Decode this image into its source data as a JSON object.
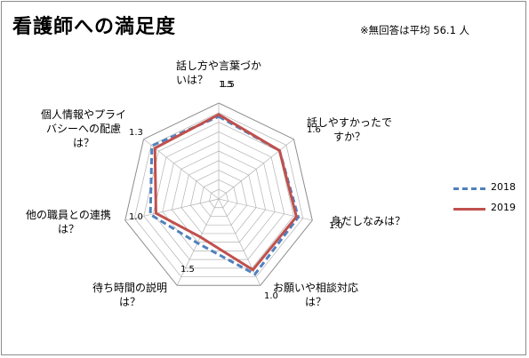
{
  "chart_data": {
    "type": "radar",
    "title": "看護師への満足度",
    "note": "※無回答は平均 56.1 人",
    "categories": [
      "話し方や言葉づか\nいは？",
      "話しやすかったで\nすか？",
      "身だしなみは？",
      "お願いや相談対応\nは？",
      "待ち時間の説明\nは？",
      "他の職員との連携\nは？",
      "個人情報やプライ\nバシーへの配慮\nは？"
    ],
    "tick_labels": [
      "1.5",
      "1.6",
      "1.0",
      "1.0",
      "1.5",
      "1.0",
      "1.3",
      "1.5"
    ],
    "rlim": [
      1.0,
      2.0
    ],
    "series": [
      {
        "name": "2018",
        "values": [
          1.86,
          1.81,
          1.85,
          1.87,
          1.51,
          1.73,
          1.89
        ],
        "color": "#4f81bd",
        "style": "dashed"
      },
      {
        "name": "2019",
        "values": [
          1.88,
          1.81,
          1.83,
          1.82,
          1.44,
          1.67,
          1.85
        ],
        "color": "#c0504d",
        "style": "solid"
      }
    ],
    "grid": true,
    "legend_position": "right"
  }
}
